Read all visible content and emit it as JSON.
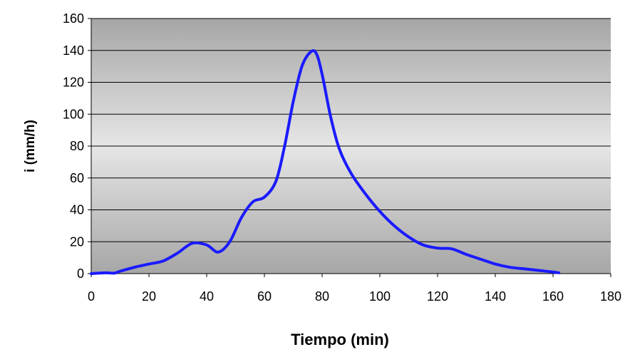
{
  "chart_data": {
    "type": "line",
    "title": "",
    "xlabel": "Tiempo (min)",
    "ylabel": "i (mm/h)",
    "xlim": [
      0,
      180
    ],
    "ylim": [
      0,
      160
    ],
    "xticks": [
      0,
      20,
      40,
      60,
      80,
      100,
      120,
      140,
      160,
      180
    ],
    "yticks": [
      0,
      20,
      40,
      60,
      80,
      100,
      120,
      140,
      160
    ],
    "grid": "horizontal",
    "legend": "none",
    "background": "gray-gradient",
    "series": [
      {
        "color": "#1a1aff",
        "x": [
          0,
          5,
          8,
          10,
          15,
          20,
          25,
          30,
          35,
          40,
          44,
          48,
          52,
          56,
          60,
          64,
          67,
          70,
          73,
          76,
          78,
          80,
          83,
          86,
          90,
          95,
          100,
          105,
          110,
          115,
          120,
          125,
          130,
          135,
          140,
          145,
          150,
          155,
          160,
          162
        ],
        "y": [
          0,
          0.5,
          0.3,
          1.5,
          4,
          6,
          8,
          13,
          19,
          18,
          13.5,
          20,
          35,
          45,
          48,
          58,
          80,
          108,
          130,
          139,
          138,
          125,
          98,
          78,
          63,
          50,
          39,
          30,
          23,
          18,
          16,
          15.5,
          12,
          9,
          6,
          4,
          3,
          2,
          1,
          0.5
        ]
      }
    ]
  }
}
